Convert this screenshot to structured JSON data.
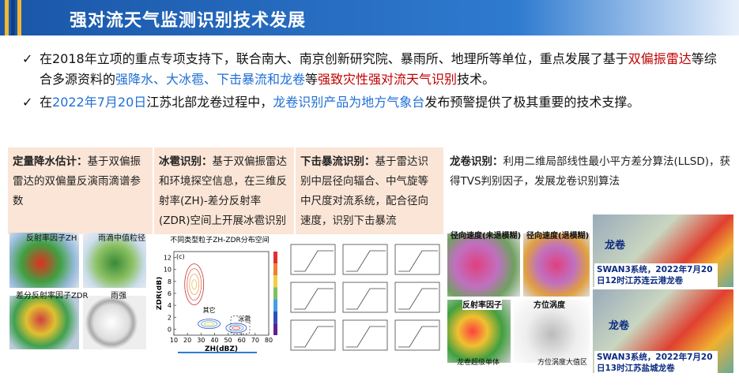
{
  "header": {
    "title": "强对流天气监测识别技术发展"
  },
  "bullets": [
    [
      {
        "text": "在2018年立项的重点专项支持下，联合南大、南京创新研究院、暴雨所、地理所等单位，重点发展了基于",
        "color": "black"
      },
      {
        "text": "双偏振雷达",
        "color": "red"
      },
      {
        "text": "等综合多源资料的",
        "color": "black"
      },
      {
        "text": "强降水、大冰雹、下击暴流和龙卷",
        "color": "blue"
      },
      {
        "text": "等",
        "color": "black"
      },
      {
        "text": "强致灾性强对流天气识别",
        "color": "red"
      },
      {
        "text": "技术。",
        "color": "black"
      }
    ],
    [
      {
        "text": "在",
        "color": "black"
      },
      {
        "text": "2022年7月20日",
        "color": "blue"
      },
      {
        "text": "江苏北部龙卷过程中，",
        "color": "black"
      },
      {
        "text": "龙卷识别产品为地方气象台",
        "color": "blue"
      },
      {
        "text": "发布预警提供了极其重要的技术支撑。",
        "color": "black"
      }
    ]
  ],
  "panels": [
    {
      "title": "定量降水估计：",
      "text": "基于双偏振雷达的双偏量反演雨滴谱参数"
    },
    {
      "title": "冰雹识别：",
      "text": "基于双偏振雷达和环境探空信息，在三维反射率(ZH)-差分反射率(ZDR)空间上开展冰雹识别"
    },
    {
      "title": "下击暴流识别：",
      "text": "基于雷达识别中层径向辐合、中气旋等中尺度对流系统，配合径向速度，识别下击暴流"
    },
    {
      "title": "龙卷识别：",
      "text": "利用二维局部线性最小平方差分算法(LLSD)，获得TVS判别因子，发展龙卷识别算法"
    }
  ],
  "qpe_labels": [
    "反射率因子ZH",
    "雨滴中值粒径",
    "差分反射率因子ZDR",
    "雨强"
  ],
  "hail_chart": {
    "title": "不同类型粒子ZH-ZDR分布空间",
    "panel_tag": "(c)",
    "xlabel": "ZH(dBZ)",
    "ylabel": "ZDR(dB)",
    "xticks": [
      10,
      20,
      30,
      40,
      50,
      60,
      70,
      80
    ],
    "yticks": [
      0,
      2,
      4,
      6,
      8,
      10,
      12
    ],
    "xlim": [
      10,
      80
    ],
    "ylim": [
      -1,
      13
    ],
    "other_label": "其它",
    "hail_label": "冰雹"
  },
  "tornado_labels": [
    "径向速度(未退模糊)",
    "径向速度(退模糊)",
    "反射率因子",
    "方位涡度",
    "龙卷超级单体",
    "方位涡度大值区"
  ],
  "swan": [
    {
      "tag": "龙卷",
      "caption": "SWAN3系统，2022年7月20日12时江苏连云港龙卷"
    },
    {
      "tag": "龙卷",
      "caption": "SWAN3系统，2022年7月20日13时江苏盐城龙卷"
    }
  ]
}
